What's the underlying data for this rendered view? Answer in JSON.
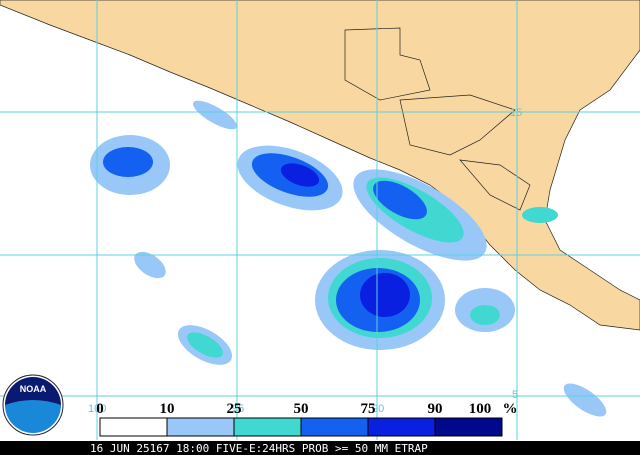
{
  "map": {
    "logo": "NOAA",
    "grid_labels": [
      "100",
      "95",
      "90",
      "15",
      "5"
    ],
    "legend": {
      "labels": [
        "0",
        "10",
        "25",
        "50",
        "75",
        "90",
        "100"
      ],
      "unit": "%",
      "colors": [
        "#ffffff",
        "#99c8f8",
        "#40d8d0",
        "#1460f0",
        "#0a20e0",
        "#00088c"
      ]
    },
    "caption": "16 JUN 25167 18:00 FIVE-E:24HRS PROB >= 50 MM ETRAP"
  }
}
